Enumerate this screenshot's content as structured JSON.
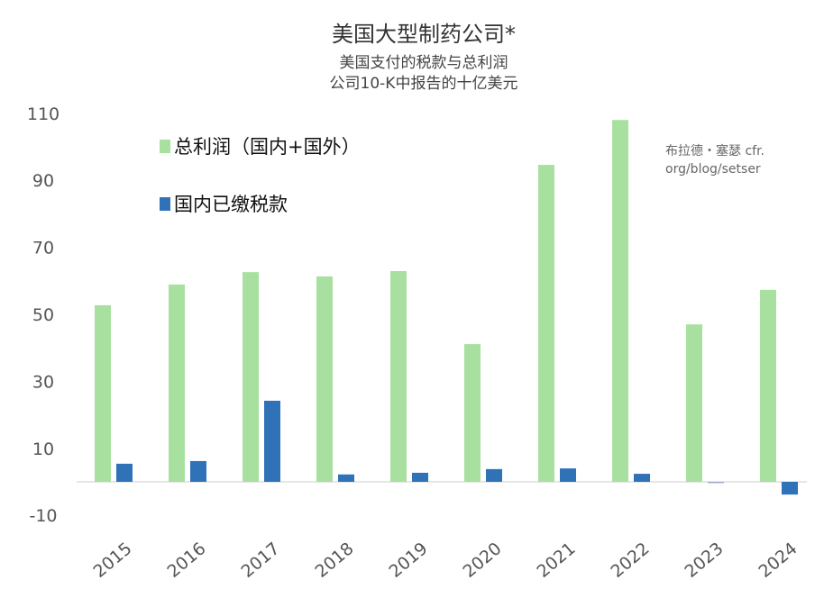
{
  "chart_data": {
    "type": "bar",
    "title": "美国大型制药公司*",
    "subtitle": [
      "美国支付的税款与总利润",
      "公司10-K中报告的十亿美元"
    ],
    "credit": [
      "布拉德・塞瑟 cfr.",
      "org/blog/setser"
    ],
    "categories": [
      "2015",
      "2016",
      "2017",
      "2018",
      "2019",
      "2020",
      "2021",
      "2022",
      "2023",
      "2024"
    ],
    "series": [
      {
        "name": "总利润（国内+国外）",
        "color": "#a8e0a0",
        "values": [
          52.7,
          58.9,
          62.6,
          61.3,
          62.9,
          41.1,
          94.6,
          108.0,
          47.0,
          57.3
        ]
      },
      {
        "name": "国内已缴税款",
        "color": "#2f72b8",
        "values": [
          5.4,
          6.2,
          24.2,
          2.2,
          2.7,
          3.8,
          4.0,
          2.4,
          -0.3,
          -3.8
        ]
      }
    ],
    "yticks": [
      110,
      90,
      70,
      50,
      30,
      10,
      -10
    ],
    "ylim": [
      -12,
      112
    ],
    "legend_position": "top-left",
    "grid": false
  }
}
